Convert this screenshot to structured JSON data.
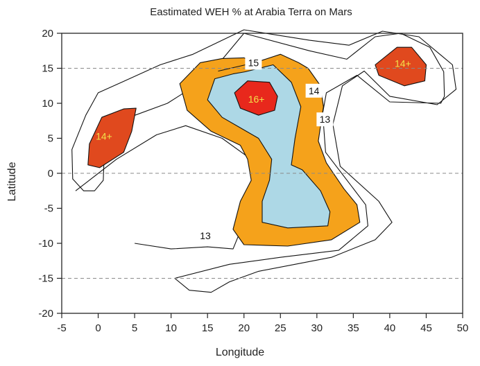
{
  "chart_data": {
    "type": "contour",
    "title": "Eastimated WEH % at Arabia Terra on Mars",
    "xlabel": "Longitude",
    "ylabel": "Latitude",
    "xlim": [
      -5,
      50
    ],
    "ylim": [
      -20,
      20
    ],
    "x_ticks": [
      -5,
      0,
      5,
      10,
      15,
      20,
      25,
      30,
      35,
      40,
      45,
      50
    ],
    "y_ticks": [
      -20,
      -15,
      -10,
      -5,
      0,
      5,
      10,
      15,
      20
    ],
    "reference_lines_y": [
      15,
      0,
      -15
    ],
    "contour_levels": [
      13,
      14,
      15,
      16
    ],
    "colors": {
      "13": "#ffffff",
      "14": "#f5a21b",
      "15": "#add8e6",
      "16": "#e8281c",
      "14plus_region": "#e0491e",
      "hot_label": "#f2e24a",
      "line": "#111111"
    },
    "regions": [
      {
        "level": "13",
        "fill": "none",
        "points": [
          [
            0.8,
            2
          ],
          [
            1.5,
            4.4
          ],
          [
            4.8,
            8.2
          ],
          [
            9.5,
            10
          ],
          [
            14.8,
            13.5
          ],
          [
            20,
            20
          ],
          [
            29,
            17.5
          ],
          [
            34.1,
            16.3
          ],
          [
            38,
            19.5
          ],
          [
            41.5,
            20
          ],
          [
            45.5,
            18
          ],
          [
            47.4,
            14.5
          ],
          [
            47.5,
            11
          ],
          [
            47,
            10
          ],
          [
            40,
            10.2
          ],
          [
            35.5,
            14
          ],
          [
            31.3,
            11.5
          ],
          [
            30.8,
            8.6
          ],
          [
            31.2,
            3
          ],
          [
            34.5,
            -1.5
          ],
          [
            36.7,
            -4.5
          ],
          [
            37,
            -7.5
          ],
          [
            33,
            -11
          ],
          [
            25,
            -12
          ],
          [
            18,
            -13
          ],
          [
            10.5,
            -15
          ],
          [
            12.5,
            -16.7
          ],
          [
            15.5,
            -17
          ],
          [
            18,
            -15.5
          ],
          [
            22,
            -14
          ],
          [
            27,
            -13
          ],
          [
            32,
            -12
          ],
          [
            38,
            -9.5
          ],
          [
            40.3,
            -7
          ],
          [
            38.5,
            -4
          ],
          [
            33.2,
            1
          ],
          [
            32.2,
            7
          ],
          [
            33.5,
            12.5
          ],
          [
            36.5,
            14.6
          ],
          [
            40,
            11
          ],
          [
            46.5,
            9.8
          ],
          [
            49.1,
            12
          ],
          [
            48.6,
            15.5
          ],
          [
            44,
            19.5
          ],
          [
            39,
            20.3
          ],
          [
            34.4,
            18.3
          ],
          [
            29,
            19
          ],
          [
            20,
            20.5
          ],
          [
            13,
            17
          ],
          [
            8.5,
            15.5
          ],
          [
            3.2,
            13
          ],
          [
            0,
            11.5
          ],
          [
            -1.7,
            8.3
          ],
          [
            -3.6,
            3.4
          ],
          [
            -3.5,
            -0.8
          ],
          [
            -2,
            -2.5
          ],
          [
            -0.5,
            -2.5
          ],
          [
            0.7,
            -1
          ],
          [
            0.8,
            2
          ]
        ]
      },
      {
        "level": "13",
        "fill": "none",
        "points": [
          [
            5,
            -10
          ],
          [
            10,
            -10.8
          ],
          [
            15,
            -10.5
          ],
          [
            18.5,
            -10.8
          ],
          [
            20,
            -7
          ],
          [
            22,
            -3
          ],
          [
            21,
            2
          ],
          [
            17,
            5
          ],
          [
            12,
            6.8
          ],
          [
            8,
            5.5
          ],
          [
            2.5,
            2
          ],
          [
            -0.6,
            -0.5
          ],
          [
            -3.1,
            -2.5
          ]
        ]
      },
      {
        "level": "14",
        "fill": "#f5a21b",
        "points": [
          [
            16.5,
            14.6
          ],
          [
            21.5,
            15.8
          ],
          [
            25,
            17
          ],
          [
            27.5,
            15.8
          ],
          [
            28.8,
            15
          ],
          [
            30.5,
            12.5
          ],
          [
            30.9,
            9.5
          ],
          [
            30.2,
            4.6
          ],
          [
            31.3,
            1.5
          ],
          [
            33.7,
            -2.2
          ],
          [
            35.5,
            -4.5
          ],
          [
            35.9,
            -7
          ],
          [
            32,
            -9.5
          ],
          [
            26,
            -10.4
          ],
          [
            20,
            -10.2
          ],
          [
            18.5,
            -8
          ],
          [
            19.5,
            -4
          ],
          [
            21,
            -1
          ],
          [
            20.5,
            2
          ],
          [
            19.5,
            4
          ],
          [
            15.5,
            6
          ],
          [
            12.2,
            9
          ],
          [
            11.2,
            12.8
          ],
          [
            14,
            15.8
          ],
          [
            17,
            16.4
          ],
          [
            20,
            16.5
          ],
          [
            21.5,
            15.8
          ]
        ]
      },
      {
        "level": "15",
        "fill": "#add8e6",
        "points": [
          [
            20.2,
            14.5
          ],
          [
            24,
            15.5
          ],
          [
            26.5,
            13
          ],
          [
            27.8,
            9.5
          ],
          [
            27,
            5
          ],
          [
            26.5,
            1.2
          ],
          [
            28,
            0.5
          ],
          [
            30.5,
            -2.5
          ],
          [
            31.8,
            -5.5
          ],
          [
            31.5,
            -7.5
          ],
          [
            26,
            -7.8
          ],
          [
            22.5,
            -7
          ],
          [
            22.5,
            -4
          ],
          [
            23.5,
            -1
          ],
          [
            23.8,
            2
          ],
          [
            22,
            5
          ],
          [
            19.5,
            6.5
          ],
          [
            17,
            8
          ],
          [
            15,
            10.5
          ],
          [
            16,
            13.5
          ],
          [
            18.5,
            14.2
          ],
          [
            20.2,
            14.5
          ]
        ]
      },
      {
        "level": "16+",
        "fill": "#e8281c",
        "points": [
          [
            20.5,
            13.2
          ],
          [
            23.5,
            13
          ],
          [
            24.6,
            11
          ],
          [
            24.2,
            9
          ],
          [
            22,
            8.3
          ],
          [
            19.5,
            9.3
          ],
          [
            18.7,
            11.5
          ],
          [
            20.5,
            13.2
          ]
        ]
      },
      {
        "level": "14+",
        "fill": "#e0491e",
        "points": [
          [
            -1.2,
            4.2
          ],
          [
            0.5,
            8
          ],
          [
            3.5,
            9.2
          ],
          [
            5.2,
            9.3
          ],
          [
            4.6,
            6
          ],
          [
            3.5,
            3
          ],
          [
            0.2,
            0.8
          ],
          [
            -1.4,
            1.2
          ],
          [
            -1.2,
            4.2
          ]
        ]
      },
      {
        "level": "14+",
        "fill": "#e0491e",
        "points": [
          [
            38,
            15.5
          ],
          [
            41,
            18
          ],
          [
            43,
            18
          ],
          [
            45,
            15.5
          ],
          [
            44.8,
            13.2
          ],
          [
            42,
            12.5
          ],
          [
            38.5,
            14
          ],
          [
            38,
            15.5
          ]
        ]
      }
    ],
    "labels": [
      {
        "text": "16+",
        "x": 21.7,
        "y": 10.6,
        "color": "#f2e24a",
        "box": false
      },
      {
        "text": "14+",
        "x": 0.8,
        "y": 5.3,
        "color": "#f2e24a",
        "box": false
      },
      {
        "text": "14+",
        "x": 41.8,
        "y": 15.7,
        "color": "#f2e24a",
        "box": false
      },
      {
        "text": "15",
        "x": 21.3,
        "y": 15.8,
        "color": "#111111",
        "box": true
      },
      {
        "text": "14",
        "x": 29.6,
        "y": 11.8,
        "color": "#111111",
        "box": true
      },
      {
        "text": "13",
        "x": 31.1,
        "y": 7.7,
        "color": "#111111",
        "box": true
      },
      {
        "text": "13",
        "x": 14.7,
        "y": -8.9,
        "color": "#111111",
        "box": true
      }
    ],
    "grid": false
  }
}
